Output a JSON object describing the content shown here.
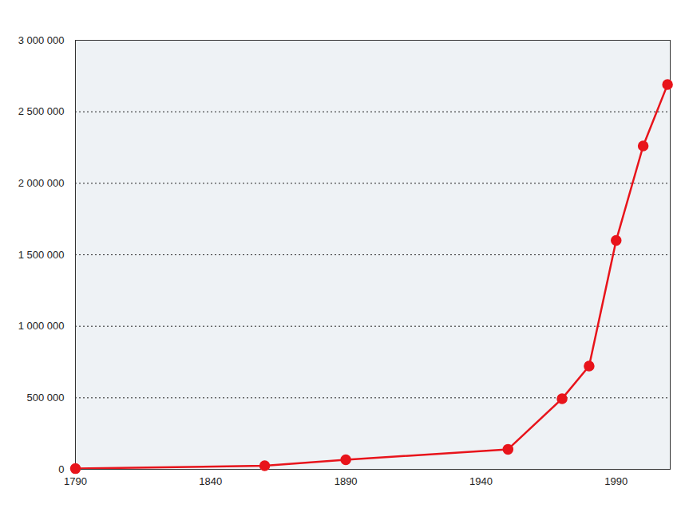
{
  "chart_data": {
    "type": "line",
    "x": [
      1790,
      1860,
      1890,
      1950,
      1970,
      1980,
      1990,
      2000,
      2009
    ],
    "values": [
      5000,
      25000,
      67000,
      140000,
      494000,
      722000,
      1600000,
      2261000,
      2690000
    ],
    "color": "#e8141b",
    "marker": "circle",
    "xlim": [
      1790,
      2010
    ],
    "xticks": [
      1790,
      1840,
      1890,
      1940,
      1990
    ],
    "ylim": [
      0,
      3000000
    ],
    "yticks": [
      0,
      {
        "value": 500000,
        "label": "500 000"
      },
      {
        "value": 1000000,
        "label": "1 000 000"
      },
      {
        "value": 1500000,
        "label": "1 500 000"
      },
      {
        "value": 2000000,
        "label": "2 000 000"
      },
      {
        "value": 2500000,
        "label": "2 500 000"
      },
      {
        "value": 3000000,
        "label": "3 000 000"
      }
    ],
    "grid": true
  }
}
